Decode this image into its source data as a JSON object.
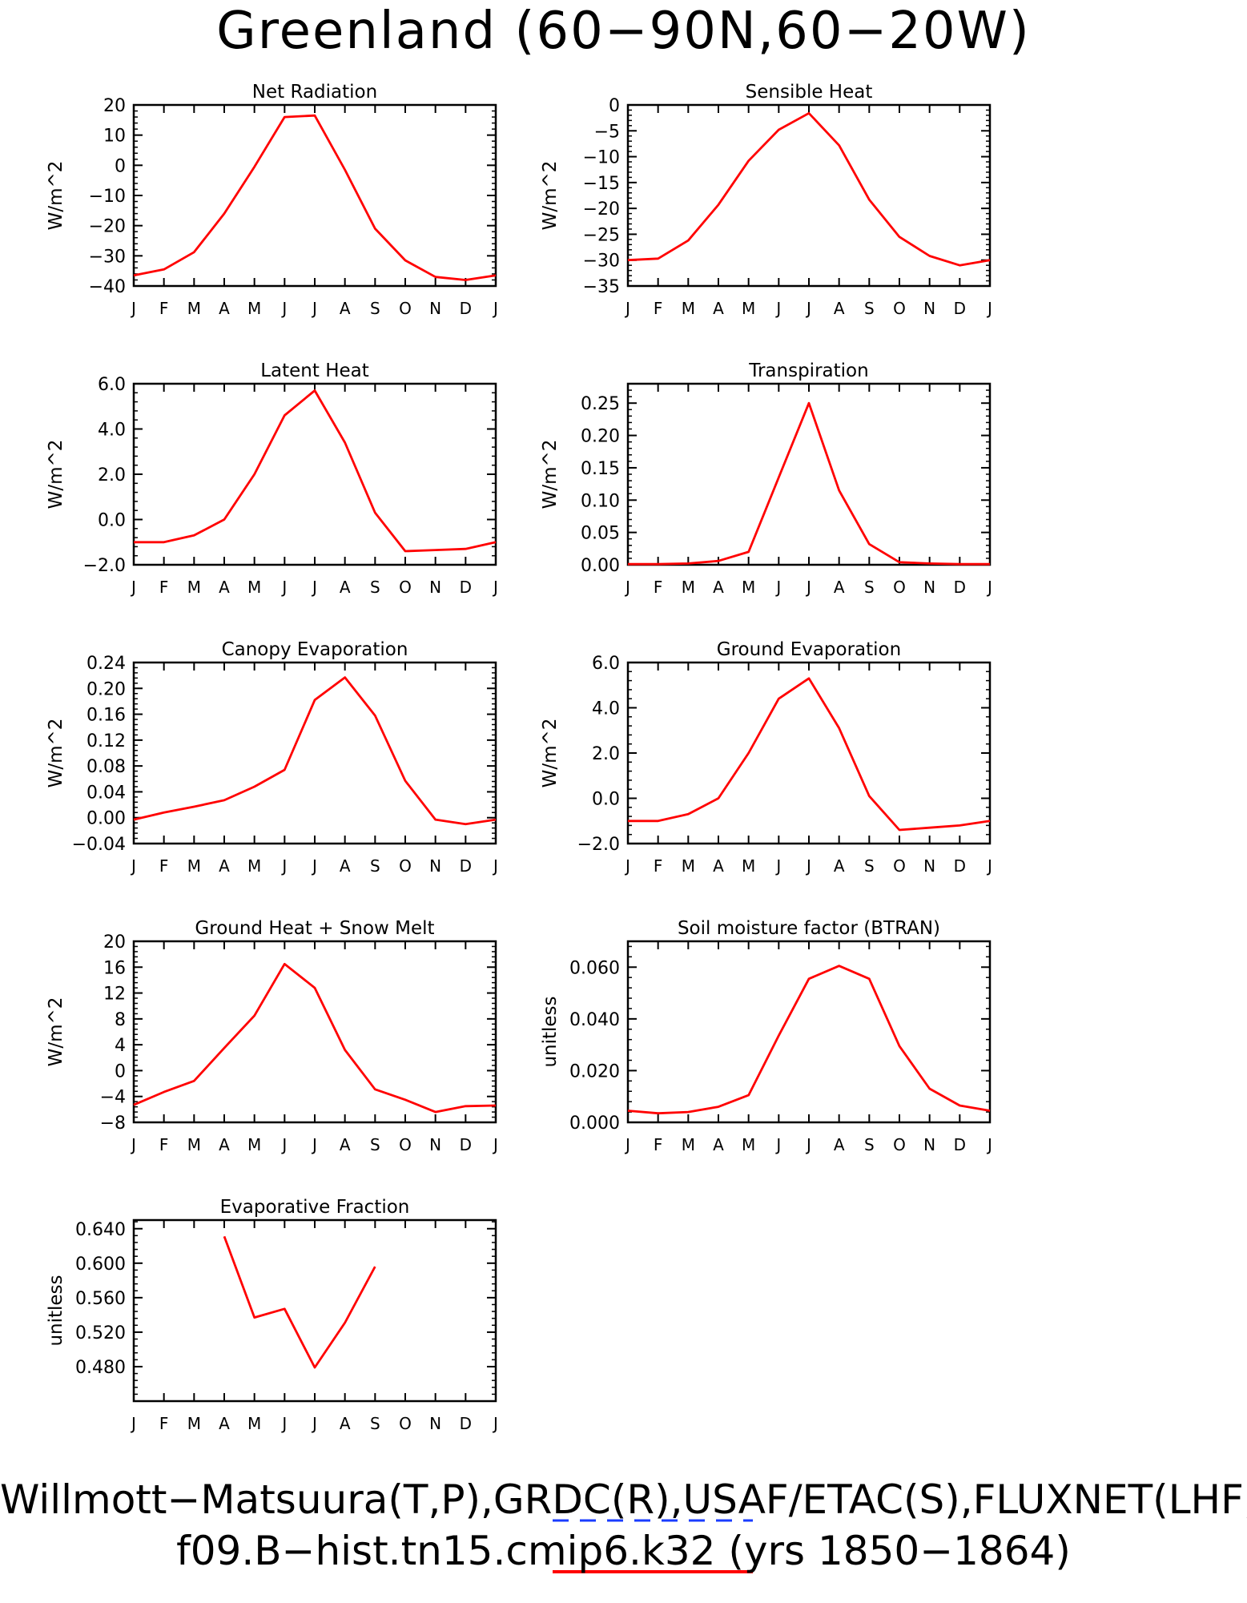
{
  "title": "Greenland (60-90N,60-20W)",
  "footer": {
    "line1": "Willmott-Matsuura(T,P),GRDC(R),USAF/ETAC(S),FLUXNET(LHF,GP",
    "line2": "f09.B-hist.tn15.cmip6.k32 (yrs 1850-1864)"
  },
  "colors": {
    "series": "#ff0000",
    "obs_legend": "#1a3cff",
    "axis": "#000000"
  },
  "chart_data": [
    {
      "type": "line",
      "title": "Net Radiation",
      "ylabel": "W/m^2",
      "categories": [
        "J",
        "F",
        "M",
        "A",
        "M",
        "J",
        "J",
        "A",
        "S",
        "O",
        "N",
        "D",
        "J"
      ],
      "ylim": [
        -40,
        20
      ],
      "yticks": [
        20,
        10,
        0,
        -10,
        -20,
        -30,
        -40
      ],
      "yticklabels": [
        "20",
        "10",
        "0",
        "−10",
        "−20",
        "−30",
        "−40"
      ],
      "values": [
        -36.5,
        -34.5,
        -28.8,
        -16,
        -0.5,
        16,
        16.5,
        -1.5,
        -21,
        -31.5,
        -37,
        -38,
        -36.5
      ]
    },
    {
      "type": "line",
      "title": "Sensible Heat",
      "ylabel": "W/m^2",
      "categories": [
        "J",
        "F",
        "M",
        "A",
        "M",
        "J",
        "J",
        "A",
        "S",
        "O",
        "N",
        "D",
        "J"
      ],
      "ylim": [
        -35,
        0
      ],
      "yticks": [
        0,
        -5,
        -10,
        -15,
        -20,
        -25,
        -30,
        -35
      ],
      "yticklabels": [
        "0",
        "−5",
        "−10",
        "−15",
        "−20",
        "−25",
        "−30",
        "−35"
      ],
      "values": [
        -30,
        -29.7,
        -26.2,
        -19.3,
        -10.8,
        -4.8,
        -1.6,
        -7.8,
        -18.3,
        -25.5,
        -29.2,
        -31,
        -30
      ]
    },
    {
      "type": "line",
      "title": "Latent Heat",
      "ylabel": "W/m^2",
      "categories": [
        "J",
        "F",
        "M",
        "A",
        "M",
        "J",
        "J",
        "A",
        "S",
        "O",
        "N",
        "D",
        "J"
      ],
      "ylim": [
        -2,
        6
      ],
      "yticks": [
        6,
        4,
        2,
        0,
        -2
      ],
      "yticklabels": [
        "6.0",
        "4.0",
        "2.0",
        "0.0",
        "−2.0"
      ],
      "values": [
        -1,
        -1,
        -0.7,
        0,
        2,
        4.6,
        5.7,
        3.4,
        0.3,
        -1.4,
        -1.35,
        -1.3,
        -1
      ]
    },
    {
      "type": "line",
      "title": "Transpiration",
      "ylabel": "W/m^2",
      "categories": [
        "J",
        "F",
        "M",
        "A",
        "M",
        "J",
        "J",
        "A",
        "S",
        "O",
        "N",
        "D",
        "J"
      ],
      "ylim": [
        0,
        0.28
      ],
      "yticks": [
        0.25,
        0.2,
        0.15,
        0.1,
        0.05,
        0
      ],
      "yticklabels": [
        "0.25",
        "0.20",
        "0.15",
        "0.10",
        "0.05",
        "0.00"
      ],
      "values": [
        0.001,
        0.001,
        0.002,
        0.006,
        0.02,
        0.135,
        0.25,
        0.115,
        0.032,
        0.004,
        0.002,
        0.001,
        0.001
      ]
    },
    {
      "type": "line",
      "title": "Canopy Evaporation",
      "ylabel": "W/m^2",
      "categories": [
        "J",
        "F",
        "M",
        "A",
        "M",
        "J",
        "J",
        "A",
        "S",
        "O",
        "N",
        "D",
        "J"
      ],
      "ylim": [
        -0.04,
        0.24
      ],
      "yticks": [
        0.24,
        0.2,
        0.16,
        0.12,
        0.08,
        0.04,
        0,
        -0.04
      ],
      "yticklabels": [
        "0.24",
        "0.20",
        "0.16",
        "0.12",
        "0.08",
        "0.04",
        "0.00",
        "−0.04"
      ],
      "values": [
        -0.003,
        0.008,
        0.017,
        0.027,
        0.048,
        0.074,
        0.182,
        0.217,
        0.158,
        0.057,
        -0.003,
        -0.01,
        -0.003
      ]
    },
    {
      "type": "line",
      "title": "Ground Evaporation",
      "ylabel": "W/m^2",
      "categories": [
        "J",
        "F",
        "M",
        "A",
        "M",
        "J",
        "J",
        "A",
        "S",
        "O",
        "N",
        "D",
        "J"
      ],
      "ylim": [
        -2,
        6
      ],
      "yticks": [
        6,
        4,
        2,
        0,
        -2
      ],
      "yticklabels": [
        "6.0",
        "4.0",
        "2.0",
        "0.0",
        "−2.0"
      ],
      "values": [
        -1,
        -1,
        -0.7,
        0,
        2,
        4.4,
        5.3,
        3.1,
        0.1,
        -1.4,
        -1.3,
        -1.2,
        -1
      ]
    },
    {
      "type": "line",
      "title": "Ground Heat + Snow Melt",
      "ylabel": "W/m^2",
      "categories": [
        "J",
        "F",
        "M",
        "A",
        "M",
        "J",
        "J",
        "A",
        "S",
        "O",
        "N",
        "D",
        "J"
      ],
      "ylim": [
        -8,
        20
      ],
      "yticks": [
        20,
        16,
        12,
        8,
        4,
        0,
        -4,
        -8
      ],
      "yticklabels": [
        "20",
        "16",
        "12",
        "8",
        "4",
        "0",
        "−4",
        "−8"
      ],
      "values": [
        -5.3,
        -3.3,
        -1.6,
        3.5,
        8.5,
        16.5,
        12.8,
        3.2,
        -2.9,
        -4.5,
        -6.4,
        -5.5,
        -5.4
      ]
    },
    {
      "type": "line",
      "title": "Soil moisture factor (BTRAN)",
      "ylabel": "unitless",
      "categories": [
        "J",
        "F",
        "M",
        "A",
        "M",
        "J",
        "J",
        "A",
        "S",
        "O",
        "N",
        "D",
        "J"
      ],
      "ylim": [
        0,
        0.07
      ],
      "yticks": [
        0.06,
        0.04,
        0.02,
        0
      ],
      "yticklabels": [
        "0.060",
        "0.040",
        "0.020",
        "0.000"
      ],
      "values": [
        0.0045,
        0.0035,
        0.004,
        0.006,
        0.0105,
        0.0335,
        0.0555,
        0.0605,
        0.0555,
        0.0295,
        0.013,
        0.0065,
        0.0045
      ]
    },
    {
      "type": "line",
      "title": "Evaporative Fraction",
      "ylabel": "unitless",
      "categories": [
        "J",
        "F",
        "M",
        "A",
        "M",
        "J",
        "J",
        "A",
        "S",
        "O",
        "N",
        "D",
        "J"
      ],
      "ylim": [
        0.44,
        0.65
      ],
      "yticks": [
        0.64,
        0.6,
        0.56,
        0.52,
        0.48
      ],
      "yticklabels": [
        "0.640",
        "0.600",
        "0.560",
        "0.520",
        "0.480"
      ],
      "values": [
        null,
        null,
        null,
        0.631,
        0.537,
        0.547,
        0.479,
        0.531,
        0.596,
        null,
        null,
        null,
        null
      ]
    }
  ]
}
